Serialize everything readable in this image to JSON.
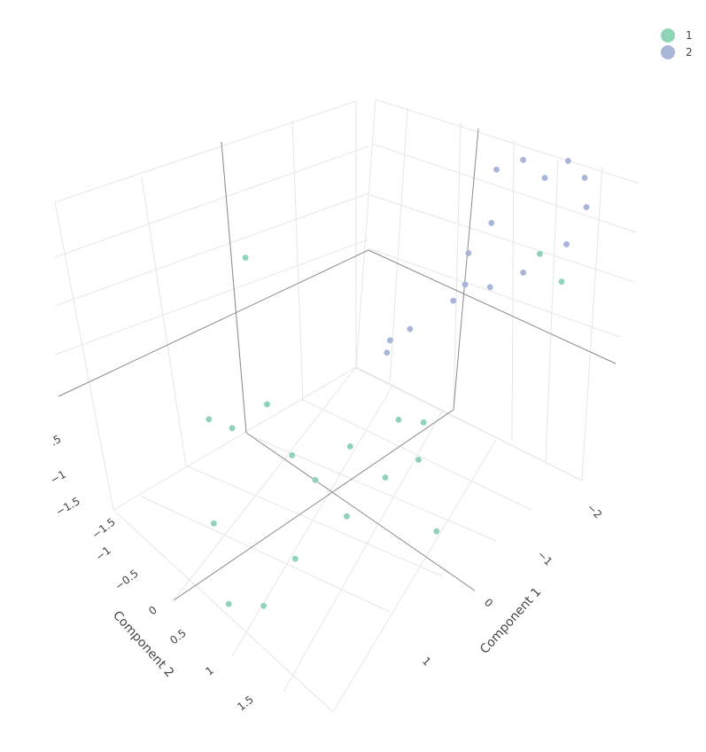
{
  "chart_data": {
    "type": "scatter",
    "xlabel": "Component 1",
    "ylabel": "Component 2",
    "zlabel": "",
    "x_ticks": [
      "−2",
      "−1",
      "0",
      "1"
    ],
    "y_ticks": [
      "−1.5",
      "−1",
      "−0.5",
      "0",
      "0.5",
      "1",
      "1.5"
    ],
    "z_ticks": [
      ".5",
      "−1",
      "−1.5"
    ],
    "legend_placement": "top-right",
    "series": [
      {
        "name": "1",
        "color": "#8fd4b9",
        "points": [
          {
            "x": 0.6,
            "y": 1.1,
            "z": 1.0
          },
          {
            "x": -1.1,
            "y": -1.2,
            "z": 1.3
          },
          {
            "x": -1.6,
            "y": -0.9,
            "z": 0.8
          },
          {
            "x": 0.7,
            "y": -0.6,
            "z": 0.2
          },
          {
            "x": 0.9,
            "y": -0.8,
            "z": -0.2
          },
          {
            "x": 0.3,
            "y": -1.4,
            "z": -0.3
          },
          {
            "x": 0.4,
            "y": 0.3,
            "z": -0.5
          },
          {
            "x": 0.8,
            "y": 0.1,
            "z": -0.9
          },
          {
            "x": 1.2,
            "y": 0.6,
            "z": -1.3
          },
          {
            "x": 0.9,
            "y": 1.2,
            "z": -1.0
          },
          {
            "x": 1.1,
            "y": 0.2,
            "z": -1.2
          },
          {
            "x": -0.6,
            "y": 0.5,
            "z": -0.9
          },
          {
            "x": -1.0,
            "y": 0.5,
            "z": -0.9
          },
          {
            "x": 0.2,
            "y": 0.9,
            "z": -0.6
          },
          {
            "x": 0.6,
            "y": 1.3,
            "z": -0.4
          },
          {
            "x": -0.9,
            "y": 0.3,
            "z": -0.5
          },
          {
            "x": -1.0,
            "y": 0.8,
            "z": -0.7
          },
          {
            "x": 0.5,
            "y": 0.9,
            "z": -0.1
          },
          {
            "x": 0.8,
            "y": 1.4,
            "z": -0.3
          }
        ]
      },
      {
        "name": "2",
        "color": "#a9b6d9",
        "points": [
          {
            "x": -0.2,
            "y": -1.6,
            "z": 2.0
          },
          {
            "x": -0.5,
            "y": -1.3,
            "z": 2.2
          },
          {
            "x": -0.9,
            "y": -1.2,
            "z": 2.1
          },
          {
            "x": -1.0,
            "y": -1.4,
            "z": 2.0
          },
          {
            "x": -1.2,
            "y": -1.5,
            "z": 2.1
          },
          {
            "x": -1.4,
            "y": -1.5,
            "z": 1.9
          },
          {
            "x": -1.5,
            "y": -1.4,
            "z": 1.6
          },
          {
            "x": -1.5,
            "y": -1.1,
            "z": 1.2
          },
          {
            "x": -1.3,
            "y": -0.7,
            "z": 0.9
          },
          {
            "x": -0.3,
            "y": -0.9,
            "z": 1.1
          },
          {
            "x": -0.1,
            "y": -0.5,
            "z": 0.8
          },
          {
            "x": -0.1,
            "y": -0.2,
            "z": 0.6
          },
          {
            "x": -1.3,
            "y": -0.2,
            "z": 0.6
          },
          {
            "x": -1.4,
            "y": 0.3,
            "z": 0.4
          },
          {
            "x": -1.6,
            "y": 0.5,
            "z": 0.5
          },
          {
            "x": -0.7,
            "y": 0.6,
            "z": 0.0
          }
        ]
      }
    ]
  }
}
